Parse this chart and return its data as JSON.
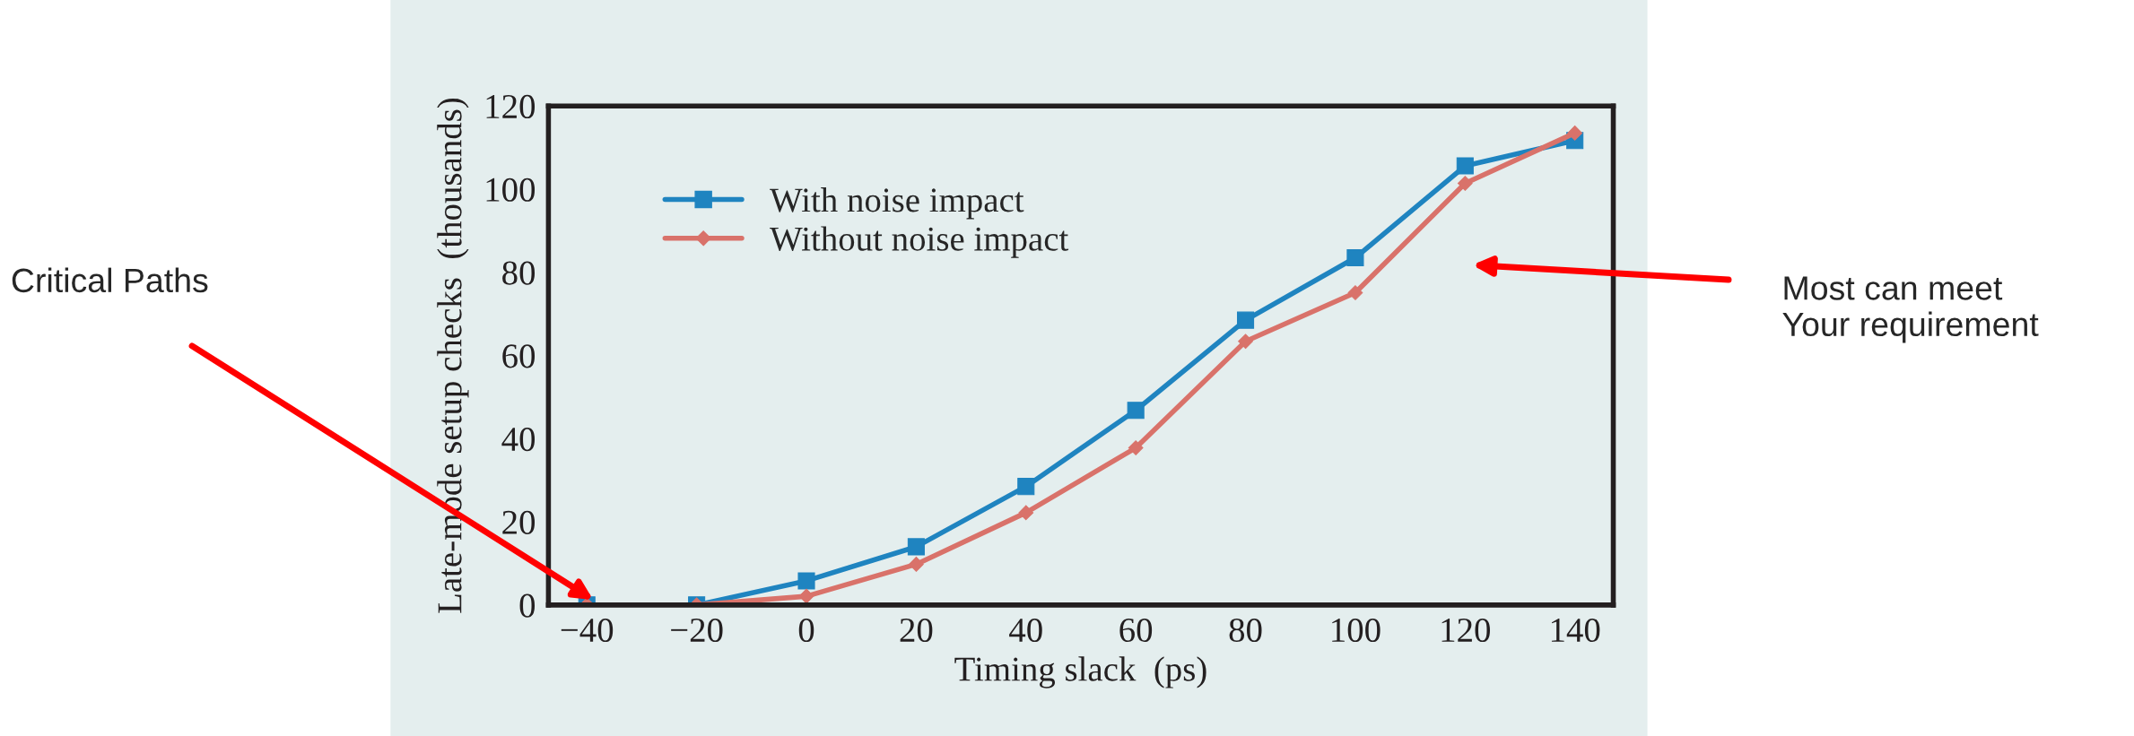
{
  "chart_data": {
    "type": "line",
    "xlabel": "Timing slack  (ps)",
    "ylabel": "Late-mode setup checks  (thousands)",
    "x": [
      -40,
      -20,
      0,
      20,
      40,
      60,
      80,
      100,
      120,
      140
    ],
    "series": [
      {
        "name": "With noise impact",
        "color": "#1f84c0",
        "marker": "square",
        "values": [
          0,
          0,
          5.8,
          14,
          28.5,
          46.8,
          68.5,
          83.5,
          105.6,
          111.7
        ]
      },
      {
        "name": "Without noise impact",
        "color": "#d9726a",
        "marker": "diamond",
        "values": [
          0,
          0,
          2.1,
          9.8,
          22.2,
          37.8,
          63.4,
          75.1,
          101.4,
          113.5
        ]
      }
    ],
    "xlim": [
      -47,
      147
    ],
    "xticks": [
      {
        "value": -40,
        "label": "−40"
      },
      {
        "value": -20,
        "label": "−20"
      },
      0,
      20,
      40,
      60,
      80,
      100,
      120,
      140
    ],
    "ylim": [
      0,
      120
    ],
    "yticks": [
      0,
      20,
      40,
      60,
      80,
      100,
      120
    ],
    "grid": false,
    "legend": "top left",
    "line_style": "solid",
    "annotations": [
      "Critical Paths",
      "Most can meet\nYour requirement"
    ]
  }
}
